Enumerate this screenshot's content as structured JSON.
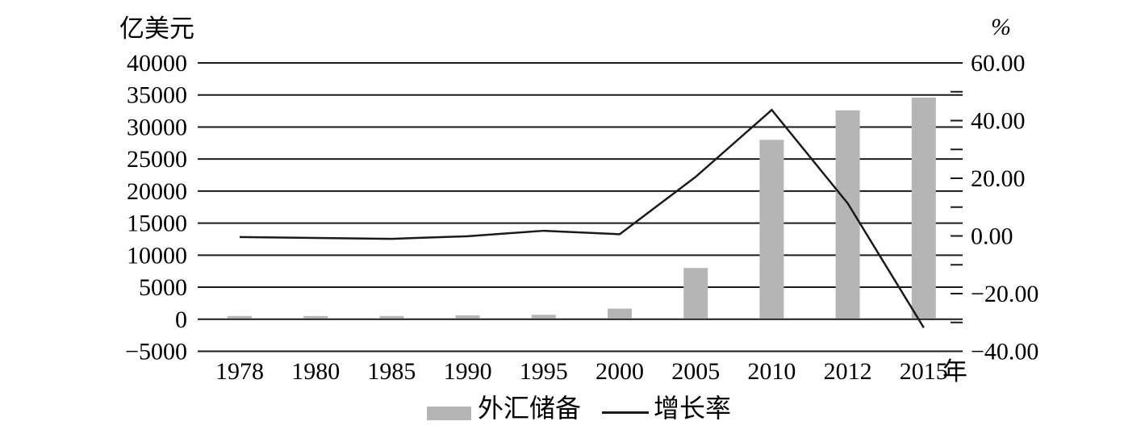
{
  "chart_data": {
    "type": "bar",
    "subtype": "bar-line-combo",
    "categories": [
      "1978",
      "1980",
      "1985",
      "1990",
      "1995",
      "2000",
      "2005",
      "2010",
      "2012",
      "2015"
    ],
    "series": [
      {
        "name": "外汇储备",
        "type": "bar",
        "axis": "left",
        "values": [
          500,
          500,
          500,
          600,
          700,
          1650,
          8000,
          28000,
          32600,
          34600
        ]
      },
      {
        "name": "增长率",
        "type": "line",
        "axis": "right",
        "values": [
          -0.4,
          -0.7,
          -1.0,
          -0.1,
          1.8,
          0.6,
          20.5,
          43.7,
          11.3,
          -31.8
        ]
      }
    ],
    "left_axis": {
      "title": "亿美元",
      "range": [
        -5000,
        40000
      ],
      "tick_values": [
        40000,
        35000,
        30000,
        25000,
        20000,
        15000,
        10000,
        5000,
        0,
        -5000
      ],
      "tick_labels": [
        "40000",
        "35000",
        "30000",
        "25000",
        "20000",
        "15000",
        "10000",
        "5000",
        "0",
        "−5000"
      ]
    },
    "right_axis": {
      "title": "%",
      "range": [
        -40,
        60
      ],
      "minor_tick_step": 10,
      "tick_values": [
        60,
        40,
        20,
        0,
        -20,
        -40
      ],
      "tick_labels": [
        "60.00",
        "40.00",
        "20.00",
        "0.00",
        "−20.00",
        "−40.00"
      ]
    },
    "x_axis_unit": "年",
    "legend": [
      {
        "label": "外汇储备",
        "swatch": "bar"
      },
      {
        "label": "增长率",
        "swatch": "line"
      }
    ],
    "grid": true,
    "legend_position": "bottom-center",
    "colors": {
      "bar": "#b5b5b5",
      "line": "#1a1a1a",
      "grid": "#1a1a1a",
      "text": "#000000",
      "background": "#ffffff"
    }
  }
}
